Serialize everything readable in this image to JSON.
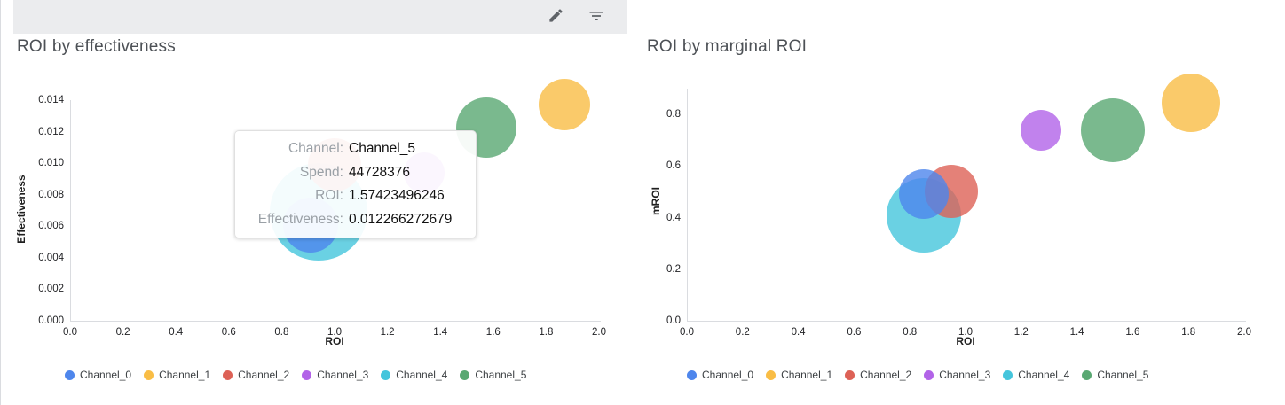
{
  "toolbar": {
    "buttons": [
      {
        "icon": "edit"
      },
      {
        "icon": "filter-list"
      }
    ]
  },
  "channels": [
    {
      "name": "Channel_0",
      "color": "#4E86EC"
    },
    {
      "name": "Channel_1",
      "color": "#F9BD45"
    },
    {
      "name": "Channel_2",
      "color": "#DD6156"
    },
    {
      "name": "Channel_3",
      "color": "#B263E8"
    },
    {
      "name": "Channel_4",
      "color": "#45C5DC"
    },
    {
      "name": "Channel_5",
      "color": "#59A872"
    }
  ],
  "tooltip": {
    "rows": [
      {
        "label": "Channel:",
        "value": "Channel_5"
      },
      {
        "label": "Spend:",
        "value": "44728376"
      },
      {
        "label": "ROI:",
        "value": "1.57423496246"
      },
      {
        "label": "Effectiveness:",
        "value": "0.012266272679"
      }
    ]
  },
  "chart_data": [
    {
      "type": "bubble",
      "title": "ROI by effectiveness",
      "xlabel": "ROI",
      "ylabel": "Effectiveness",
      "xlim": [
        0,
        2.0
      ],
      "ylim": [
        0,
        0.014
      ],
      "x_ticks": [
        "0.0",
        "0.2",
        "0.4",
        "0.6",
        "0.8",
        "1.0",
        "1.2",
        "1.4",
        "1.6",
        "1.8",
        "2.0"
      ],
      "y_ticks": [
        "0.000",
        "0.002",
        "0.004",
        "0.006",
        "0.008",
        "0.010",
        "0.012",
        "0.014"
      ],
      "grid": false,
      "legend_position": "bottom",
      "size_metric": "Spend",
      "series": [
        {
          "name": "Channel_4",
          "x": 0.94,
          "y": 0.0069,
          "r": 55,
          "color": "#45C5DC"
        },
        {
          "name": "Channel_2",
          "x": 1.0,
          "y": 0.0099,
          "r": 30,
          "color": "#DD6156"
        },
        {
          "name": "Channel_0",
          "x": 0.91,
          "y": 0.0061,
          "r": 31,
          "color": "#4E86EC"
        },
        {
          "name": "Channel_3",
          "x": 1.34,
          "y": 0.0094,
          "r": 23,
          "color": "#B263E8"
        },
        {
          "name": "Channel_5",
          "x": 1.5742,
          "y": 0.012266272679,
          "r": 34,
          "color": "#59A872"
        },
        {
          "name": "Channel_1",
          "x": 1.87,
          "y": 0.0137,
          "r": 29,
          "color": "#F9BD45"
        }
      ]
    },
    {
      "type": "bubble",
      "title": "ROI by marginal ROI",
      "xlabel": "ROI",
      "ylabel": "mROI",
      "xlim": [
        0,
        2.0
      ],
      "ylim": [
        0,
        0.9
      ],
      "x_ticks": [
        "0.0",
        "0.2",
        "0.4",
        "0.6",
        "0.8",
        "1.0",
        "1.2",
        "1.4",
        "1.6",
        "1.8",
        "2.0"
      ],
      "y_ticks": [
        "0.0",
        "0.2",
        "0.4",
        "0.6",
        "0.8"
      ],
      "grid": false,
      "legend_position": "bottom",
      "size_metric": "Spend",
      "series": [
        {
          "name": "Channel_4",
          "x": 0.85,
          "y": 0.41,
          "r": 42,
          "color": "#45C5DC"
        },
        {
          "name": "Channel_2",
          "x": 0.95,
          "y": 0.5,
          "r": 30,
          "color": "#DD6156"
        },
        {
          "name": "Channel_0",
          "x": 0.85,
          "y": 0.49,
          "r": 28,
          "color": "#4E86EC"
        },
        {
          "name": "Channel_3",
          "x": 1.27,
          "y": 0.74,
          "r": 23,
          "color": "#B263E8"
        },
        {
          "name": "Channel_5",
          "x": 1.53,
          "y": 0.74,
          "r": 36,
          "color": "#59A872"
        },
        {
          "name": "Channel_1",
          "x": 1.81,
          "y": 0.845,
          "r": 33,
          "color": "#F9BD45"
        }
      ]
    }
  ]
}
